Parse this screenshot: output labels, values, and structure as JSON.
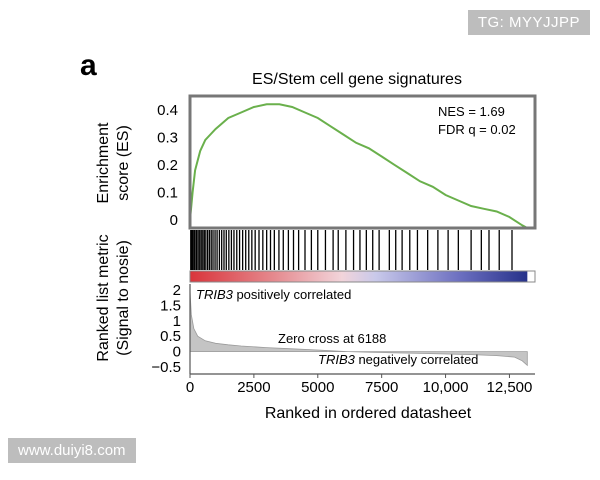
{
  "panel_label": "a",
  "badge_text": "TG: MYYJJPP",
  "watermark_text": "www.duiyi8.com",
  "colors": {
    "es_line": "#6ab04c",
    "frame": "#777777",
    "metric_fill": "#c4c4c4",
    "pos_corr": "#d9343b",
    "neg_corr": "#27328a"
  },
  "chart_data": [
    {
      "type": "line",
      "title": "ES/Stem cell gene signatures",
      "ylabel": [
        "Enrichment",
        "score (ES)"
      ],
      "ylim": [
        -0.03,
        0.45
      ],
      "yticks": [
        0,
        0.1,
        0.2,
        0.3,
        0.4
      ],
      "ytick_labels": [
        "0",
        "0.1",
        "0.2",
        "0.3",
        "0.4"
      ],
      "x": [
        0,
        100,
        200,
        400,
        600,
        800,
        1000,
        1500,
        2000,
        2500,
        3000,
        3500,
        4000,
        4500,
        5000,
        5500,
        6000,
        6500,
        7000,
        7500,
        8000,
        8500,
        9000,
        9500,
        10000,
        10500,
        11000,
        11500,
        12000,
        12500,
        13000,
        13200
      ],
      "y": [
        0,
        0.1,
        0.18,
        0.25,
        0.29,
        0.31,
        0.33,
        0.37,
        0.39,
        0.41,
        0.42,
        0.42,
        0.41,
        0.39,
        0.37,
        0.34,
        0.31,
        0.28,
        0.26,
        0.23,
        0.2,
        0.17,
        0.14,
        0.12,
        0.09,
        0.07,
        0.05,
        0.04,
        0.03,
        0.01,
        -0.02,
        -0.03
      ],
      "annotations": [
        "NES = 1.69",
        "FDR q = 0.02"
      ]
    },
    {
      "type": "area",
      "ylabel": [
        "Ranked list metric",
        "(Signal to nosie)"
      ],
      "xlabel": "Ranked in ordered datasheet",
      "xlim": [
        0,
        13500
      ],
      "ylim": [
        -0.6,
        2.2
      ],
      "xticks": [
        0,
        2500,
        5000,
        7500,
        10000,
        12500
      ],
      "xtick_labels": [
        "0",
        "2500",
        "5000",
        "7500",
        "10,000",
        "12,500"
      ],
      "yticks": [
        -0.5,
        0,
        0.5,
        1,
        1.5,
        2
      ],
      "ytick_labels": [
        "−0.5",
        "0",
        "0.5",
        "1",
        "1.5",
        "2"
      ],
      "x": [
        0,
        50,
        150,
        300,
        600,
        1000,
        1500,
        2000,
        3000,
        4000,
        5000,
        6188,
        7000,
        8000,
        9000,
        10000,
        11000,
        12000,
        12700,
        13000,
        13200
      ],
      "y": [
        2.0,
        1.2,
        0.75,
        0.5,
        0.35,
        0.27,
        0.22,
        0.18,
        0.13,
        0.09,
        0.05,
        0,
        -0.02,
        -0.04,
        -0.06,
        -0.08,
        -0.1,
        -0.13,
        -0.18,
        -0.3,
        -0.45
      ],
      "zero_cross": 6188,
      "labels": {
        "positive": {
          "gene": "TRIB3",
          "text": " positively correlated"
        },
        "zero": "Zero cross at 6188",
        "negative": {
          "gene": "TRIB3",
          "text": " negatively correlated"
        }
      }
    }
  ],
  "gene_hits": [
    30,
    60,
    100,
    150,
    200,
    260,
    320,
    380,
    440,
    500,
    560,
    620,
    690,
    760,
    830,
    900,
    980,
    1060,
    1150,
    1240,
    1330,
    1420,
    1520,
    1620,
    1720,
    1830,
    1940,
    2060,
    2180,
    2300,
    2420,
    2550,
    2700,
    2850,
    3000,
    3150,
    3300,
    3480,
    3650,
    3850,
    4050,
    4250,
    4500,
    4750,
    5000,
    5300,
    5600,
    5800,
    6100,
    6400,
    6650,
    6900,
    7150,
    7400,
    7800,
    8050,
    8300,
    8600,
    8900,
    9300,
    9700,
    10100,
    10500,
    11000,
    11400,
    11700,
    12100,
    12600
  ]
}
